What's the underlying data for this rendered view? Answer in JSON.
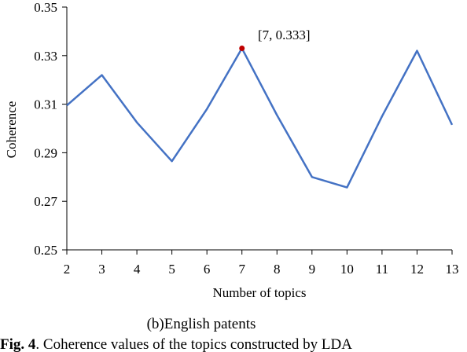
{
  "chart_data": {
    "type": "line",
    "xlabel": "Number of topics",
    "ylabel": "Coherence",
    "x": [
      2,
      3,
      4,
      5,
      6,
      7,
      8,
      9,
      10,
      11,
      12,
      13
    ],
    "series": [
      {
        "values": [
          0.3095,
          0.322,
          0.3025,
          0.2865,
          0.308,
          0.333,
          0.3055,
          0.28,
          0.2757,
          0.305,
          0.332,
          0.3015
        ]
      }
    ],
    "xlim": [
      2,
      13
    ],
    "ylim": [
      0.25,
      0.35
    ],
    "yticks": [
      "0.25",
      "0.27",
      "0.29",
      "0.31",
      "0.33",
      "0.35"
    ],
    "xticks": [
      "2",
      "3",
      "4",
      "5",
      "6",
      "7",
      "8",
      "9",
      "10",
      "11",
      "12",
      "13"
    ],
    "grid": false,
    "line_color": "#4472C4",
    "highlight": {
      "x": 7,
      "y": 0.333,
      "label": "[7, 0.333]",
      "color": "#C00000"
    },
    "subcaption": "(b)English patents",
    "caption": {
      "prefix": "Fig. 4",
      "text": ". Coherence values of the topics constructed by LDA"
    }
  }
}
